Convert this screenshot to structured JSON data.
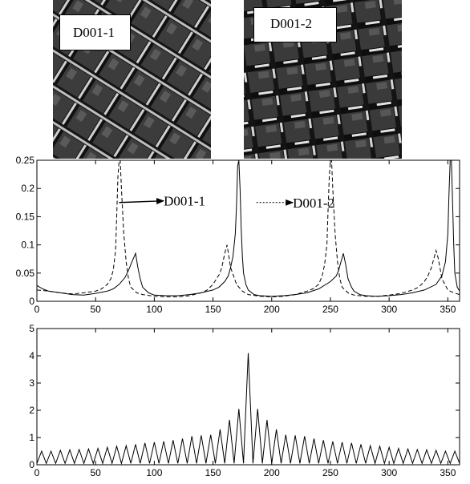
{
  "images": [
    {
      "label": "D001-1"
    },
    {
      "label": "D001-2"
    }
  ],
  "chart_data": [
    {
      "type": "line",
      "xlim": [
        0,
        360
      ],
      "ylim": [
        0,
        0.25
      ],
      "xticks": [
        0,
        50,
        100,
        150,
        200,
        250,
        300,
        350
      ],
      "yticks": [
        0,
        0.05,
        0.1,
        0.15,
        0.2,
        0.25
      ],
      "ytick_labels": [
        "0",
        "0.05",
        "0.1",
        "0.15",
        "0.2",
        "0.25"
      ],
      "grid": false,
      "annotations": [
        {
          "text": "D001-1",
          "series": "solid",
          "arrow_from": [
            70,
            0.175
          ],
          "arrow_to": [
            108,
            0.178
          ]
        },
        {
          "text": "D001-2",
          "series": "dashed",
          "arrow_from": [
            187,
            0.175
          ],
          "arrow_to": [
            218,
            0.175
          ]
        }
      ],
      "series": [
        {
          "style": "solid",
          "x": [
            0,
            5,
            10,
            20,
            30,
            40,
            50,
            60,
            65,
            70,
            75,
            78,
            80,
            82,
            84,
            86,
            88,
            90,
            95,
            100,
            110,
            120,
            130,
            140,
            150,
            155,
            160,
            163,
            165,
            167,
            169,
            170,
            171,
            172,
            173,
            174,
            175,
            176,
            178,
            180,
            185,
            190,
            200,
            210,
            220,
            230,
            240,
            250,
            255,
            257,
            259,
            261,
            263,
            265,
            268,
            270,
            275,
            280,
            290,
            300,
            310,
            320,
            330,
            340,
            345,
            348,
            350,
            351,
            352,
            353,
            354,
            355,
            356,
            358,
            360
          ],
          "y": [
            0.028,
            0.022,
            0.018,
            0.015,
            0.012,
            0.011,
            0.014,
            0.018,
            0.022,
            0.03,
            0.042,
            0.055,
            0.065,
            0.075,
            0.085,
            0.06,
            0.04,
            0.025,
            0.015,
            0.011,
            0.01,
            0.01,
            0.012,
            0.015,
            0.02,
            0.025,
            0.035,
            0.045,
            0.06,
            0.08,
            0.12,
            0.17,
            0.24,
            0.25,
            0.2,
            0.13,
            0.08,
            0.05,
            0.03,
            0.02,
            0.012,
            0.01,
            0.009,
            0.01,
            0.012,
            0.015,
            0.022,
            0.035,
            0.045,
            0.055,
            0.07,
            0.085,
            0.065,
            0.04,
            0.025,
            0.018,
            0.012,
            0.01,
            0.009,
            0.01,
            0.012,
            0.015,
            0.02,
            0.03,
            0.045,
            0.07,
            0.12,
            0.19,
            0.25,
            0.25,
            0.18,
            0.1,
            0.05,
            0.025,
            0.018
          ]
        },
        {
          "style": "dashed",
          "x": [
            0,
            10,
            20,
            30,
            40,
            50,
            55,
            60,
            63,
            65,
            67,
            68,
            69,
            70,
            71,
            72,
            74,
            76,
            78,
            80,
            85,
            90,
            100,
            110,
            120,
            130,
            140,
            145,
            150,
            153,
            156,
            158,
            160,
            162,
            165,
            170,
            175,
            180,
            190,
            200,
            210,
            220,
            230,
            235,
            240,
            243,
            245,
            247,
            248,
            249,
            250,
            251,
            252,
            254,
            256,
            258,
            260,
            265,
            270,
            280,
            290,
            300,
            310,
            320,
            325,
            330,
            333,
            336,
            338,
            340,
            342,
            345,
            350,
            355,
            360
          ],
          "y": [
            0.02,
            0.018,
            0.015,
            0.013,
            0.015,
            0.018,
            0.022,
            0.03,
            0.04,
            0.055,
            0.09,
            0.15,
            0.22,
            0.25,
            0.25,
            0.2,
            0.12,
            0.07,
            0.04,
            0.025,
            0.015,
            0.012,
            0.009,
            0.008,
            0.008,
            0.01,
            0.015,
            0.02,
            0.03,
            0.04,
            0.05,
            0.065,
            0.085,
            0.1,
            0.06,
            0.03,
            0.018,
            0.012,
            0.009,
            0.008,
            0.009,
            0.012,
            0.018,
            0.022,
            0.03,
            0.045,
            0.065,
            0.1,
            0.16,
            0.22,
            0.25,
            0.25,
            0.2,
            0.12,
            0.07,
            0.04,
            0.025,
            0.015,
            0.011,
            0.009,
            0.009,
            0.011,
            0.014,
            0.02,
            0.025,
            0.035,
            0.045,
            0.06,
            0.075,
            0.09,
            0.075,
            0.04,
            0.02,
            0.015,
            0.012
          ]
        }
      ]
    },
    {
      "type": "line",
      "xlim": [
        0,
        360
      ],
      "ylim": [
        0,
        5
      ],
      "xticks": [
        0,
        50,
        100,
        150,
        200,
        250,
        300,
        350
      ],
      "yticks": [
        0,
        1,
        2,
        3,
        4,
        5
      ],
      "ytick_labels": [
        "0",
        "1",
        "2",
        "3",
        "4",
        "5"
      ],
      "grid": false,
      "series": [
        {
          "style": "solid",
          "period": 8,
          "center": 180,
          "peak": 4.1,
          "peak_values_by_offset": [
            4.1,
            2.05,
            1.65,
            1.3,
            1.1,
            1.08,
            1.05,
            0.96,
            0.9,
            0.86,
            0.83,
            0.8,
            0.75,
            0.7,
            0.68,
            0.64,
            0.6,
            0.58,
            0.56,
            0.55,
            0.53,
            0.5,
            0.5,
            0.48
          ],
          "trough": 0.05
        }
      ]
    }
  ]
}
